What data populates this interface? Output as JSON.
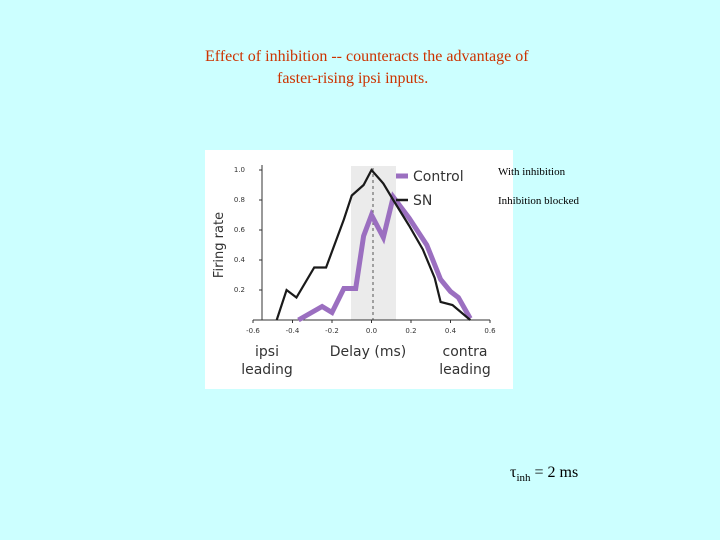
{
  "title": [
    "Effect of inhibition --  counteracts the advantage of",
    "faster-rising ipsi inputs."
  ],
  "annotations": [
    "With inhibition",
    "Inhibition blocked"
  ],
  "tau": {
    "symbol": "τ",
    "subscript": "inh",
    "text": "= 2 ms"
  },
  "chart_data": {
    "type": "line",
    "x_label": "Delay (ms)",
    "y_label": "Firing rate",
    "x_end_labels": [
      "ipsi\nleading",
      "contra\nleading"
    ],
    "xlim": [
      -0.6,
      0.6
    ],
    "xticks": [
      -0.6,
      -0.4,
      -0.2,
      {
        "value": 0,
        "label": "0.0"
      },
      0.2,
      0.4,
      0.6
    ],
    "ylim": [
      0,
      1
    ],
    "yticks": [
      0.2,
      0.4,
      0.6,
      0.8,
      {
        "value": 1,
        "label": "1.0"
      }
    ],
    "series": [
      {
        "name": "Control",
        "color": "#9b6fc0",
        "x": [
          -0.37,
          -0.33,
          -0.25,
          -0.2,
          -0.14,
          -0.08,
          -0.04,
          0.0,
          0.06,
          0.11,
          0.19,
          0.28,
          0.35,
          0.4,
          0.44,
          0.5
        ],
        "values": [
          0,
          0.03,
          0.09,
          0.05,
          0.21,
          0.21,
          0.56,
          0.7,
          0.55,
          0.82,
          0.68,
          0.5,
          0.27,
          0.19,
          0.15,
          0.01
        ]
      },
      {
        "name": "SN",
        "color": "#1a1a1a",
        "x": [
          -0.48,
          -0.43,
          -0.38,
          -0.29,
          -0.23,
          -0.14,
          -0.1,
          -0.04,
          0.0,
          0.06,
          0.11,
          0.19,
          0.26,
          0.32,
          0.35,
          0.41,
          0.5
        ],
        "values": [
          0,
          0.2,
          0.15,
          0.35,
          0.35,
          0.67,
          0.83,
          0.9,
          1.0,
          0.91,
          0.8,
          0.63,
          0.47,
          0.28,
          0.12,
          0.1,
          0
        ]
      }
    ]
  }
}
